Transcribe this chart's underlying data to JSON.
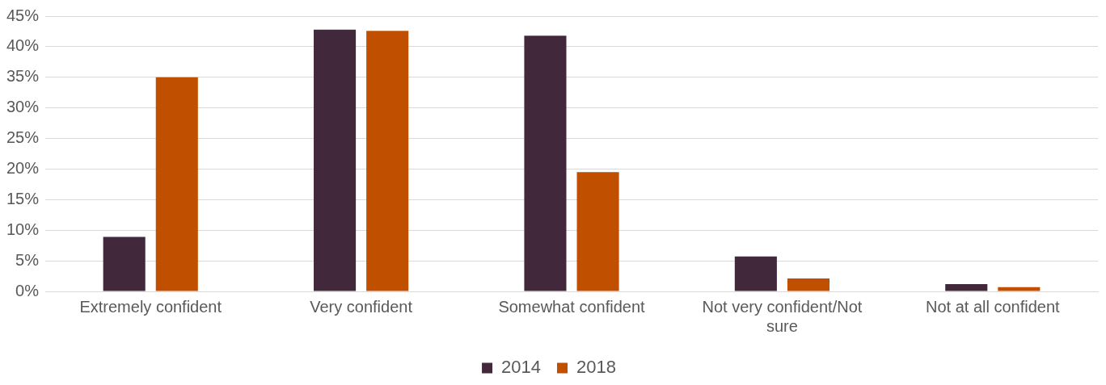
{
  "chart_data": {
    "type": "bar",
    "categories": [
      "Extremely confident",
      "Very confident",
      "Somewhat confident",
      "Not very confident/Not sure",
      "Not at all confident"
    ],
    "series": [
      {
        "name": "2014",
        "color": "#41283a",
        "values": [
          8.9,
          42.8,
          41.8,
          5.7,
          1.2
        ]
      },
      {
        "name": "2018",
        "color": "#c04f00",
        "values": [
          35.0,
          42.6,
          19.5,
          2.1,
          0.7
        ]
      }
    ],
    "ylim": [
      0,
      45
    ],
    "yticks": [
      {
        "value": 0,
        "label": "0%"
      },
      {
        "value": 5,
        "label": "5%"
      },
      {
        "value": 10,
        "label": "10%"
      },
      {
        "value": 15,
        "label": "15%"
      },
      {
        "value": 20,
        "label": "20%"
      },
      {
        "value": 25,
        "label": "25%"
      },
      {
        "value": 30,
        "label": "30%"
      },
      {
        "value": 35,
        "label": "35%"
      },
      {
        "value": 40,
        "label": "40%"
      },
      {
        "value": 45,
        "label": "45%"
      }
    ],
    "grid": "y",
    "legend": "bottom"
  }
}
